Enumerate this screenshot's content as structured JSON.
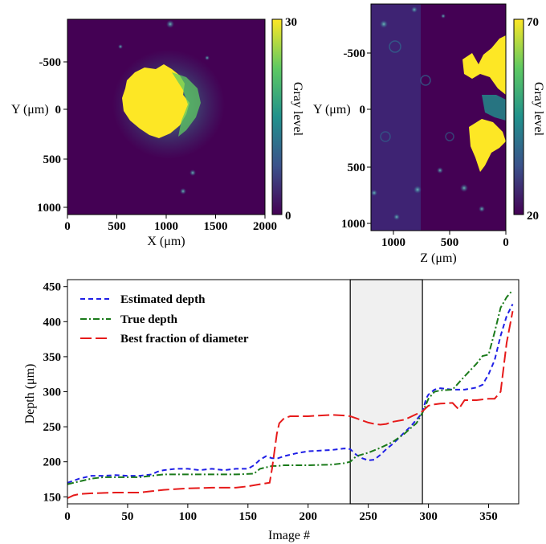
{
  "chart_data": [
    {
      "type": "heatmap",
      "xlabel": "X (μm)",
      "ylabel": "Y (μm)",
      "x_ticks": [
        "0",
        "500",
        "1000",
        "1500",
        "2000"
      ],
      "y_ticks": [
        "-500",
        "0",
        "500",
        "1000"
      ],
      "xlim": [
        0,
        2000
      ],
      "ylim": [
        -1000,
        1050
      ],
      "colorbar": {
        "label": "Gray level",
        "min": "0",
        "max": "30",
        "min_value": 0,
        "max_value": 30
      }
    },
    {
      "type": "heatmap",
      "xlabel": "Z (μm)",
      "ylabel": "Y (μm)",
      "x_ticks": [
        "1000",
        "500",
        "0"
      ],
      "y_ticks": [
        "-500",
        "0",
        "500",
        "1000"
      ],
      "xlim": [
        1200,
        0
      ],
      "ylim": [
        -1050,
        1050
      ],
      "colorbar": {
        "label": "Gray level",
        "min": "20",
        "max": "70",
        "min_value": 20,
        "max_value": 70
      }
    },
    {
      "type": "line",
      "xlabel": "Image #",
      "ylabel": "Depth (μm)",
      "xlim": [
        0,
        375
      ],
      "ylim": [
        140,
        460
      ],
      "x_ticks": [
        "0",
        "50",
        "100",
        "150",
        "200",
        "250",
        "300",
        "350"
      ],
      "y_ticks": [
        "150",
        "200",
        "250",
        "300",
        "350",
        "400",
        "450"
      ],
      "x_tick_values": [
        0,
        50,
        100,
        150,
        200,
        250,
        300,
        350
      ],
      "y_tick_values": [
        150,
        200,
        250,
        300,
        350,
        400,
        450
      ],
      "highlight_range": [
        235,
        295
      ],
      "legend_position": "upper-left",
      "series": [
        {
          "name": "Estimated depth",
          "color": "#1f1fe6",
          "style": "dashed",
          "x": [
            0,
            5,
            10,
            15,
            20,
            30,
            40,
            50,
            60,
            70,
            75,
            80,
            90,
            100,
            110,
            120,
            130,
            140,
            150,
            155,
            160,
            165,
            170,
            175,
            180,
            190,
            200,
            210,
            220,
            230,
            235,
            240,
            245,
            250,
            255,
            260,
            265,
            270,
            275,
            280,
            285,
            290,
            295,
            298,
            300,
            305,
            310,
            320,
            330,
            340,
            345,
            350,
            355,
            360,
            365,
            370
          ],
          "y": [
            170,
            173,
            176,
            178,
            180,
            180,
            181,
            180,
            180,
            182,
            186,
            188,
            190,
            190,
            188,
            190,
            188,
            190,
            190,
            195,
            203,
            208,
            205,
            205,
            208,
            212,
            215,
            216,
            217,
            219,
            218,
            210,
            205,
            202,
            203,
            210,
            218,
            225,
            233,
            242,
            250,
            260,
            270,
            290,
            296,
            303,
            305,
            303,
            303,
            306,
            310,
            325,
            345,
            380,
            408,
            425
          ]
        },
        {
          "name": "True depth",
          "color": "#1a7a1a",
          "style": "dashdot",
          "x": [
            0,
            10,
            20,
            30,
            50,
            60,
            70,
            80,
            100,
            120,
            140,
            155,
            160,
            170,
            175,
            180,
            200,
            220,
            230,
            235,
            240,
            250,
            260,
            270,
            280,
            290,
            295,
            300,
            305,
            310,
            320,
            330,
            340,
            345,
            350,
            355,
            360,
            365,
            370
          ],
          "y": [
            168,
            172,
            176,
            178,
            178,
            178,
            180,
            182,
            182,
            182,
            182,
            183,
            190,
            194,
            194,
            195,
            195,
            196,
            198,
            200,
            208,
            213,
            220,
            228,
            240,
            255,
            270,
            290,
            300,
            302,
            303,
            322,
            340,
            351,
            353,
            385,
            420,
            435,
            445
          ]
        },
        {
          "name": "Best fraction of diameter",
          "color": "#e61a1a",
          "style": "long-dashed",
          "x": [
            0,
            5,
            10,
            20,
            40,
            60,
            70,
            80,
            100,
            120,
            140,
            150,
            160,
            168,
            170,
            172,
            174,
            176,
            180,
            185,
            190,
            200,
            210,
            220,
            230,
            235,
            240,
            250,
            255,
            260,
            265,
            270,
            280,
            290,
            295,
            300,
            305,
            310,
            320,
            325,
            330,
            340,
            350,
            355,
            360,
            365,
            370
          ],
          "y": [
            148,
            152,
            154,
            155,
            156,
            156,
            158,
            160,
            162,
            163,
            163,
            165,
            168,
            170,
            190,
            215,
            240,
            255,
            262,
            265,
            265,
            265,
            266,
            267,
            266,
            265,
            262,
            256,
            254,
            253,
            254,
            257,
            260,
            268,
            272,
            280,
            282,
            283,
            284,
            275,
            288,
            288,
            290,
            290,
            300,
            370,
            415
          ]
        }
      ]
    }
  ]
}
